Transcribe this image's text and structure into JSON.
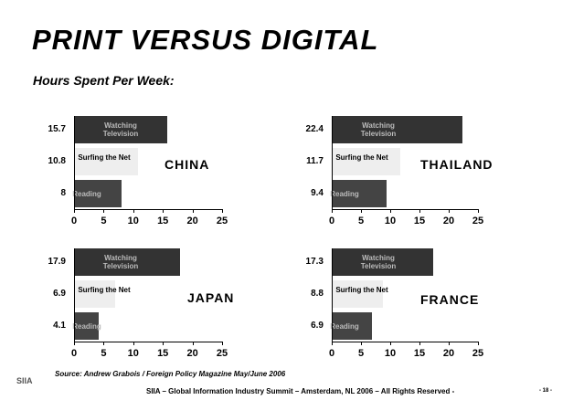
{
  "slide": {
    "title": "PRINT VERSUS DIGITAL",
    "subtitle": "Hours Spent Per Week:",
    "logo": "SIIA",
    "source": "Source: Andrew Grabois / Foreign Policy Magazine May/June 2006",
    "footer": "SIIA – Global Information Industry Summit – Amsterdam, NL 2006 – All Rights Reserved -",
    "page": "- 18 -"
  },
  "chart_data": [
    {
      "type": "bar",
      "title": "CHINA",
      "categories": [
        "Watching Television",
        "Surfing the Net",
        "Reading"
      ],
      "values": [
        15.7,
        10.8,
        8
      ],
      "colors": [
        "#333333",
        "#eeeeee",
        "#444444"
      ],
      "xlim": [
        0,
        25
      ],
      "xticks": [
        0,
        5,
        10,
        15,
        20,
        25
      ]
    },
    {
      "type": "bar",
      "title": "THAILAND",
      "categories": [
        "Watching Television",
        "Surfing the Net",
        "Reading"
      ],
      "values": [
        22.4,
        11.7,
        9.4
      ],
      "colors": [
        "#333333",
        "#eeeeee",
        "#444444"
      ],
      "xlim": [
        0,
        25
      ],
      "xticks": [
        0,
        5,
        10,
        15,
        20,
        25
      ]
    },
    {
      "type": "bar",
      "title": "JAPAN",
      "categories": [
        "Watching Television",
        "Surfing the Net",
        "Reading"
      ],
      "values": [
        17.9,
        6.9,
        4.1
      ],
      "colors": [
        "#333333",
        "#eeeeee",
        "#444444"
      ],
      "xlim": [
        0,
        25
      ],
      "xticks": [
        0,
        5,
        10,
        15,
        20,
        25
      ]
    },
    {
      "type": "bar",
      "title": "FRANCE",
      "categories": [
        "Watching Television",
        "Surfing the Net",
        "Reading"
      ],
      "values": [
        17.3,
        8.8,
        6.9
      ],
      "colors": [
        "#333333",
        "#eeeeee",
        "#444444"
      ],
      "xlim": [
        0,
        25
      ],
      "xticks": [
        0,
        5,
        10,
        15,
        20,
        25
      ]
    }
  ]
}
